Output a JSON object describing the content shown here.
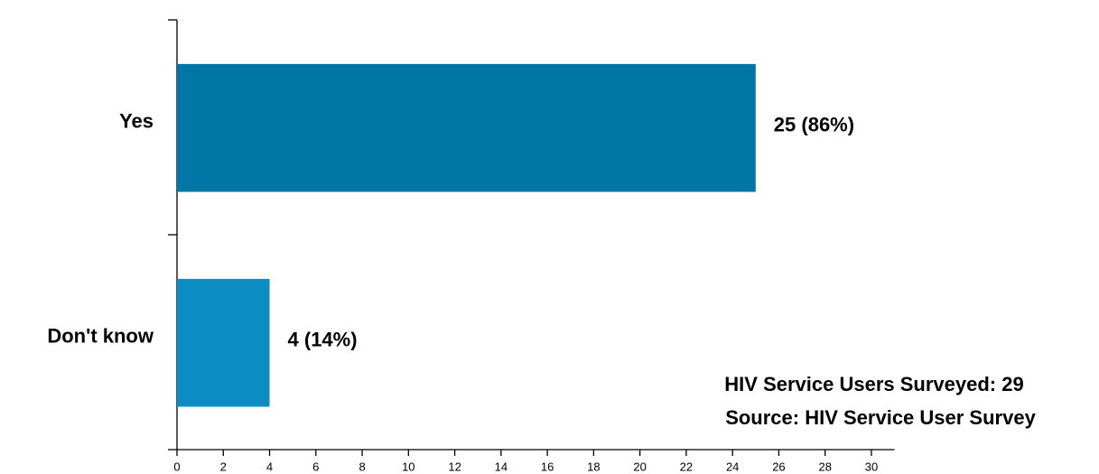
{
  "chart_data": {
    "type": "hbar",
    "categories": [
      "Yes",
      "Don't know"
    ],
    "values": [
      25,
      4
    ],
    "value_labels": [
      "25 (86%)",
      "4 (14%)"
    ],
    "colors": [
      "#0076a5",
      "#0b8dc3"
    ],
    "xlim": [
      0,
      31
    ],
    "xticks": [
      0,
      2,
      4,
      6,
      8,
      10,
      12,
      14,
      16,
      18,
      20,
      22,
      24,
      26,
      28,
      30
    ],
    "annotations": [
      "HIV Service Users Surveyed: 29",
      "Source: HIV Service User Survey"
    ]
  }
}
